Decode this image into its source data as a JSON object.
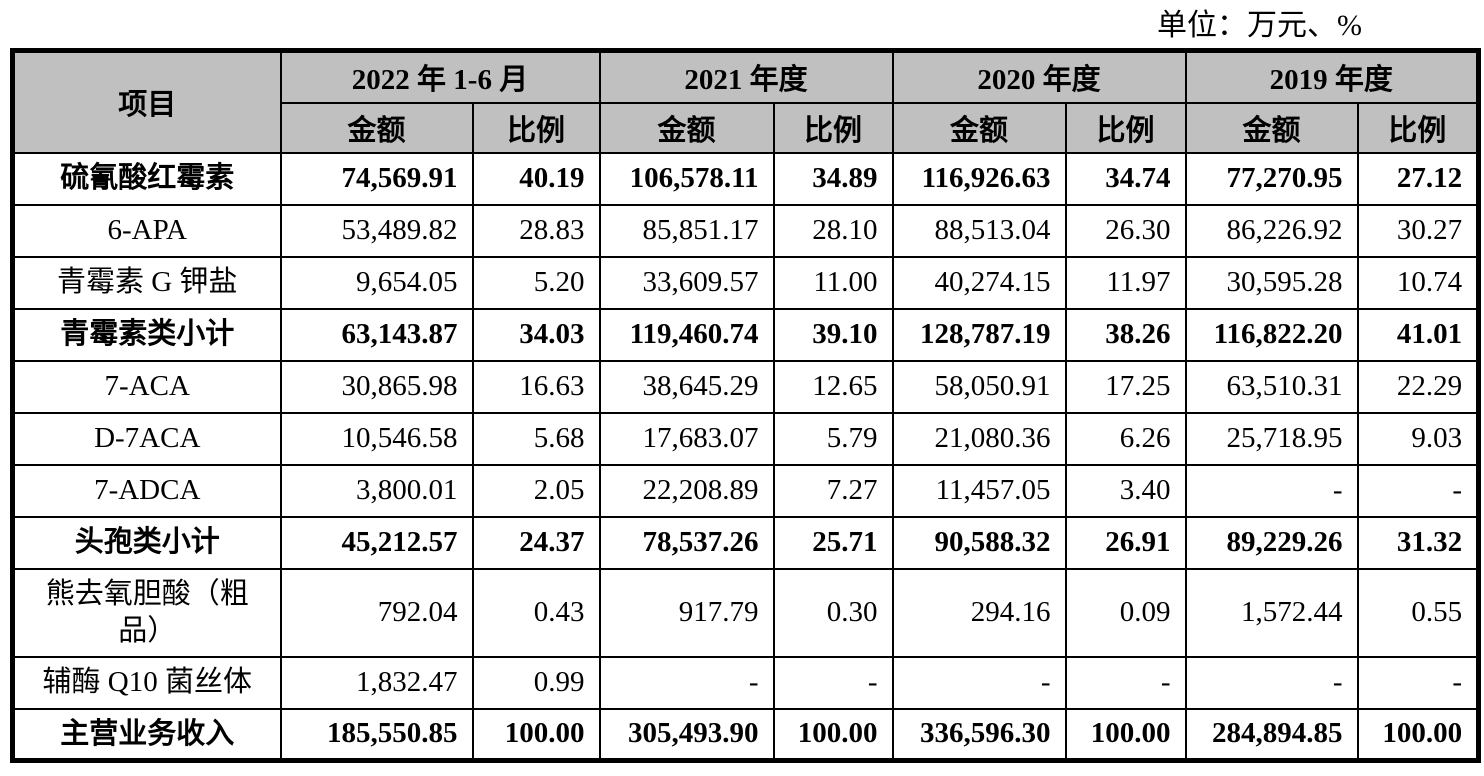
{
  "unit_label": "单位：万元、%",
  "colors": {
    "header_bg": "#c0c0c0",
    "border": "#000000",
    "text": "#000000"
  },
  "table": {
    "item_header": "项目",
    "amount_header": "金额",
    "ratio_header": "比例",
    "periods": [
      {
        "label": "2022 年 1-6 月"
      },
      {
        "label": "2021 年度"
      },
      {
        "label": "2020 年度"
      },
      {
        "label": "2019 年度"
      }
    ],
    "rows": [
      {
        "label": "硫氰酸红霉素",
        "bold": true,
        "tall": false,
        "values": [
          "74,569.91",
          "40.19",
          "106,578.11",
          "34.89",
          "116,926.63",
          "34.74",
          "77,270.95",
          "27.12"
        ]
      },
      {
        "label": "6-APA",
        "bold": false,
        "tall": false,
        "values": [
          "53,489.82",
          "28.83",
          "85,851.17",
          "28.10",
          "88,513.04",
          "26.30",
          "86,226.92",
          "30.27"
        ]
      },
      {
        "label": "青霉素 G 钾盐",
        "bold": false,
        "tall": false,
        "values": [
          "9,654.05",
          "5.20",
          "33,609.57",
          "11.00",
          "40,274.15",
          "11.97",
          "30,595.28",
          "10.74"
        ]
      },
      {
        "label": "青霉素类小计",
        "bold": true,
        "tall": false,
        "values": [
          "63,143.87",
          "34.03",
          "119,460.74",
          "39.10",
          "128,787.19",
          "38.26",
          "116,822.20",
          "41.01"
        ]
      },
      {
        "label": "7-ACA",
        "bold": false,
        "tall": false,
        "values": [
          "30,865.98",
          "16.63",
          "38,645.29",
          "12.65",
          "58,050.91",
          "17.25",
          "63,510.31",
          "22.29"
        ]
      },
      {
        "label": "D-7ACA",
        "bold": false,
        "tall": false,
        "values": [
          "10,546.58",
          "5.68",
          "17,683.07",
          "5.79",
          "21,080.36",
          "6.26",
          "25,718.95",
          "9.03"
        ]
      },
      {
        "label": "7-ADCA",
        "bold": false,
        "tall": false,
        "values": [
          "3,800.01",
          "2.05",
          "22,208.89",
          "7.27",
          "11,457.05",
          "3.40",
          "-",
          "-"
        ]
      },
      {
        "label": "头孢类小计",
        "bold": true,
        "tall": false,
        "values": [
          "45,212.57",
          "24.37",
          "78,537.26",
          "25.71",
          "90,588.32",
          "26.91",
          "89,229.26",
          "31.32"
        ]
      },
      {
        "label": "熊去氧胆酸（粗品）",
        "bold": false,
        "tall": true,
        "values": [
          "792.04",
          "0.43",
          "917.79",
          "0.30",
          "294.16",
          "0.09",
          "1,572.44",
          "0.55"
        ]
      },
      {
        "label": "辅酶 Q10 菌丝体",
        "bold": false,
        "tall": false,
        "values": [
          "1,832.47",
          "0.99",
          "-",
          "-",
          "-",
          "-",
          "-",
          "-"
        ]
      },
      {
        "label": "主营业务收入",
        "bold": true,
        "tall": false,
        "values": [
          "185,550.85",
          "100.00",
          "305,493.90",
          "100.00",
          "336,596.30",
          "100.00",
          "284,894.85",
          "100.00"
        ]
      }
    ]
  }
}
